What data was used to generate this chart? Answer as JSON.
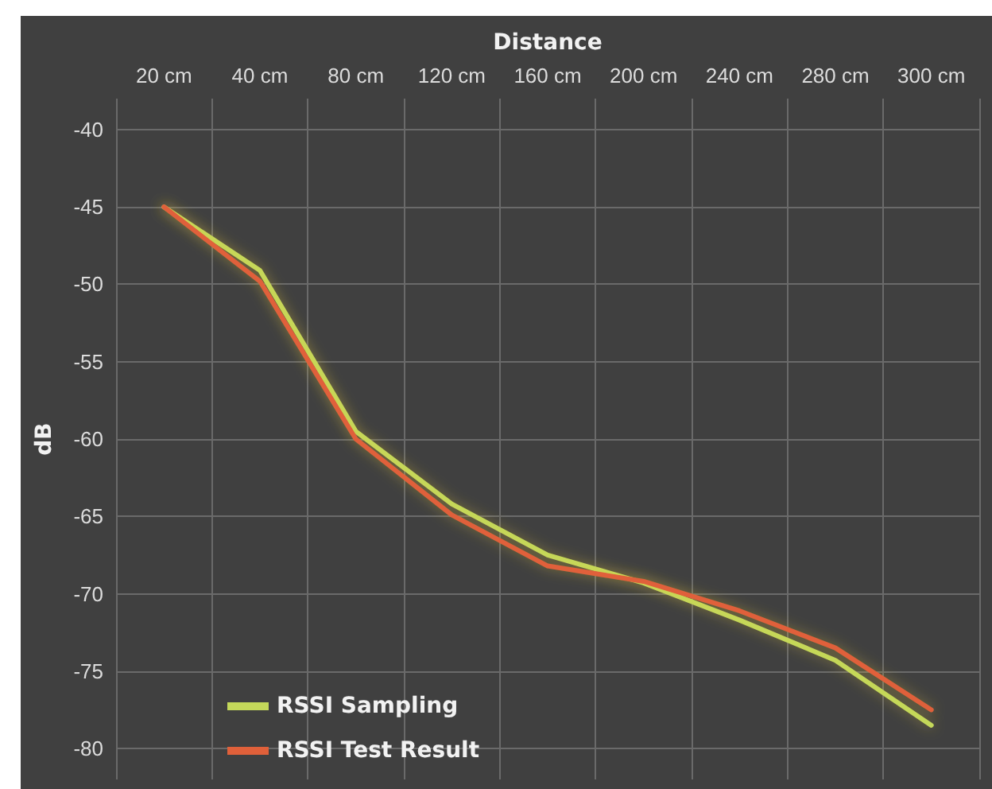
{
  "chart_data": {
    "type": "line",
    "xlabel": "Distance",
    "ylabel": "dB",
    "categories": [
      "20 cm",
      "40 cm",
      "80 cm",
      "120 cm",
      "160 cm",
      "200 cm",
      "240 cm",
      "280 cm",
      "300 cm"
    ],
    "series": [
      {
        "name": "RSSI Sampling",
        "color": "#c4d85a",
        "values": [
          -45,
          -49.1,
          -59.5,
          -64.2,
          -67.5,
          -69.3,
          -71.7,
          -74.3,
          -78.5
        ]
      },
      {
        "name": "RSSI Test Result",
        "color": "#e0603a",
        "values": [
          -45,
          -49.8,
          -60,
          -64.9,
          -68.2,
          -69.2,
          -71.1,
          -73.5,
          -77.5
        ]
      }
    ],
    "ylim": [
      -82,
      -38
    ],
    "yticks": [
      -80,
      -75,
      -70,
      -65,
      -60,
      -55,
      -50,
      -45,
      -40
    ],
    "grid": true,
    "legend": "bottom left",
    "marker": "none",
    "line_style": "solid"
  }
}
